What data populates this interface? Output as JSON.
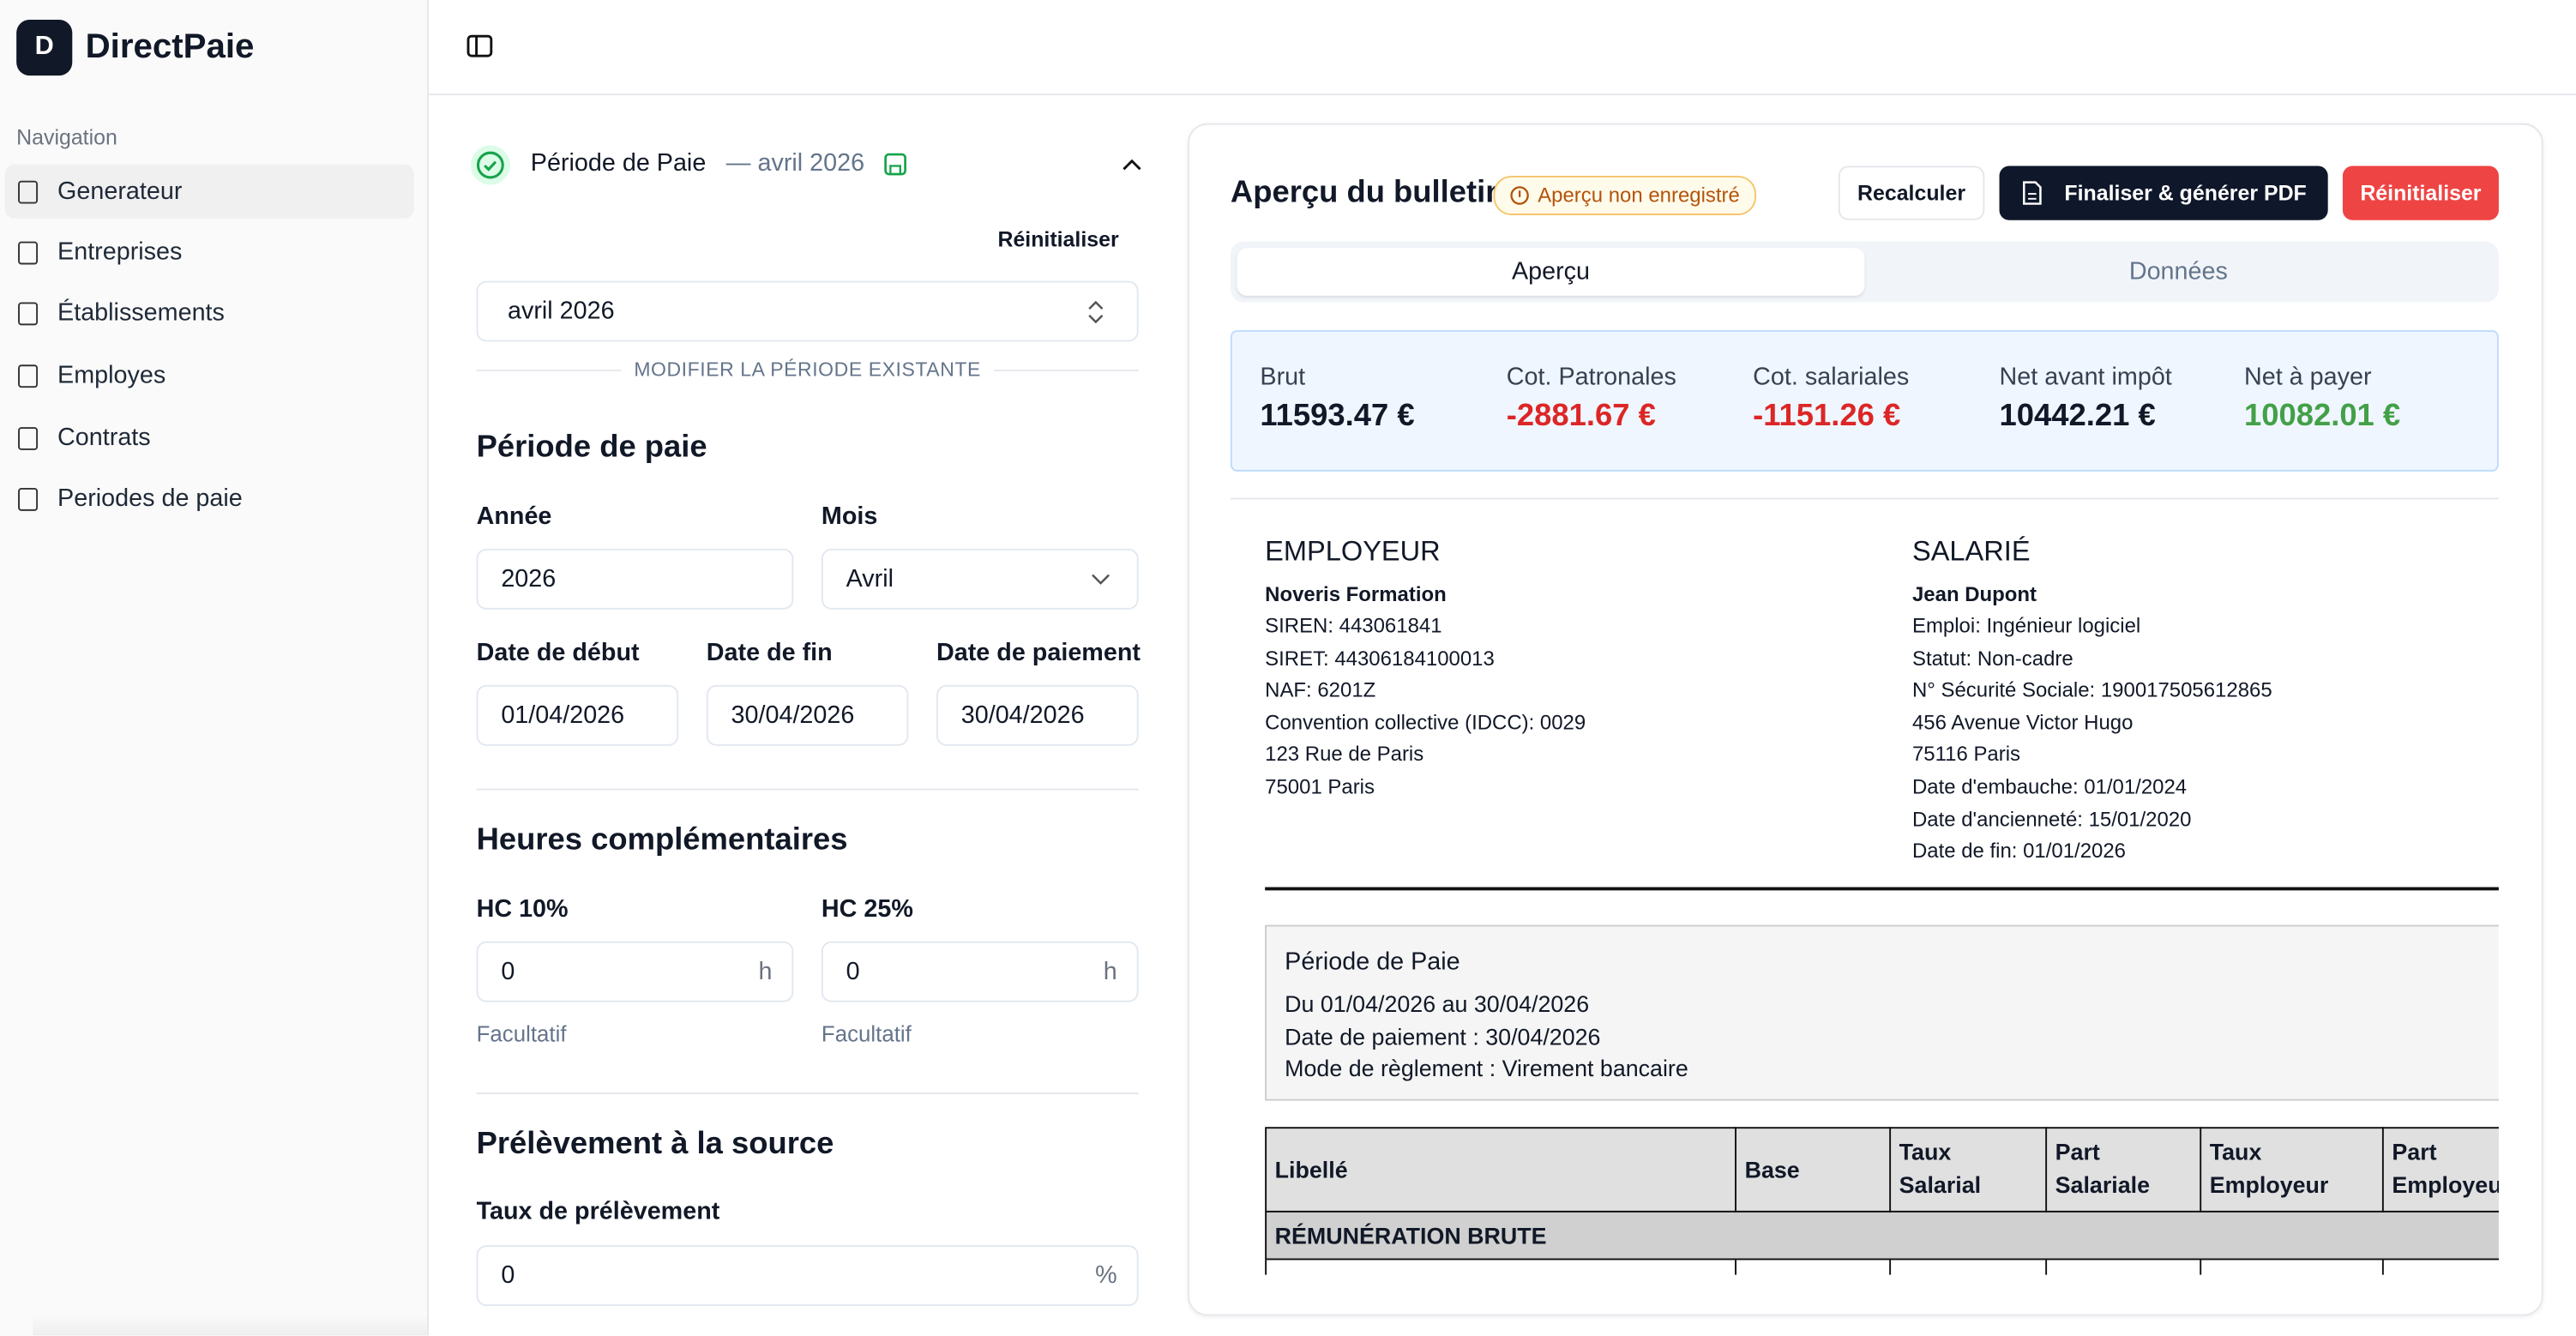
{
  "sidebar": {
    "logo_letter": "D",
    "app_name": "DirectPaie",
    "section": "Navigation",
    "items": [
      "Generateur",
      "Entreprises",
      "Établissements",
      "Employes",
      "Contrats",
      "Periodes de paie"
    ]
  },
  "form": {
    "header_title": "Période de Paie",
    "header_period": "— avril 2026",
    "reset": "Réinitialiser",
    "period_select": "avril 2026",
    "divider": "MODIFIER LA PÉRIODE EXISTANTE",
    "section1": "Période de paie",
    "annee_label": "Année",
    "annee": "2026",
    "mois_label": "Mois",
    "mois": "Avril",
    "debut_label": "Date de début",
    "debut": "01/04/2026",
    "fin_label": "Date de fin",
    "fin": "30/04/2026",
    "paiement_label": "Date de paiement",
    "paiement": "30/04/2026",
    "section2": "Heures complémentaires",
    "hc10_label": "HC 10%",
    "hc10": "0",
    "hc25_label": "HC 25%",
    "hc25": "0",
    "unit_h": "h",
    "hint": "Facultatif",
    "section3": "Prélèvement à la source",
    "taux_label": "Taux de prélèvement",
    "taux": "0",
    "unit_pct": "%"
  },
  "preview": {
    "title": "Aperçu du bulletin",
    "badge": "Aperçu non enregistré",
    "buttons": [
      "Recalculer",
      "Finaliser & générer PDF",
      "Réinitialiser"
    ],
    "tabs": [
      "Aperçu",
      "Données"
    ],
    "summary": [
      {
        "label": "Brut",
        "value": "11593.47 €"
      },
      {
        "label": "Cot. Patronales",
        "value": "-2881.67 €"
      },
      {
        "label": "Cot. salariales",
        "value": "-1151.26 €"
      },
      {
        "label": "Net avant impôt",
        "value": "10442.21 €"
      },
      {
        "label": "Net à payer",
        "value": "10082.01 €"
      }
    ],
    "employer": {
      "heading": "EMPLOYEUR",
      "name": "Noveris Formation",
      "lines": [
        "SIREN: 443061841",
        "SIRET: 44306184100013",
        "NAF: 6201Z",
        "Convention collective (IDCC): 0029",
        "123 Rue de Paris",
        "75001 Paris"
      ]
    },
    "employee": {
      "heading": "SALARIÉ",
      "name": "Jean Dupont",
      "lines": [
        "Emploi: Ingénieur logiciel",
        "Statut: Non-cadre",
        "N° Sécurité Sociale: 190017505612865",
        "456 Avenue Victor Hugo",
        "75116 Paris",
        "Date d'embauche: 01/01/2024",
        "Date d'ancienneté: 15/01/2020",
        "Date de fin: 01/01/2026"
      ]
    },
    "period": {
      "heading": "Période de Paie",
      "lines": [
        "Du 01/04/2026 au 30/04/2026",
        "Date de paiement : 30/04/2026",
        "Mode de règlement : Virement bancaire"
      ]
    },
    "table": {
      "headers": [
        "Libellé",
        "Base",
        "Taux Salarial",
        "Part Salariale",
        "Taux Employeur",
        "Part Employeur"
      ],
      "section": "RÉMUNÉRATION BRUTE"
    }
  }
}
